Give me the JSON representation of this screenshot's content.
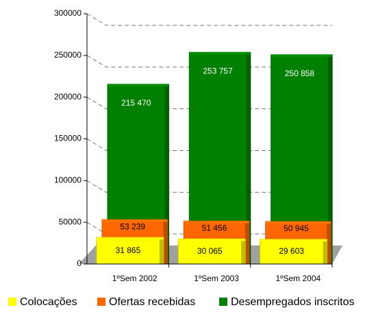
{
  "chart_data": {
    "type": "bar",
    "categories": [
      "1ºSem 2002",
      "1ºSem 2003",
      "1ºSem 2004"
    ],
    "series": [
      {
        "name": "Colocações",
        "color": "#ffff00",
        "values": [
          31865,
          30065,
          29603
        ],
        "value_labels": [
          "31 865",
          "30 065",
          "29 603"
        ]
      },
      {
        "name": "Ofertas recebidas",
        "color": "#ff6600",
        "values": [
          53239,
          51456,
          50945
        ],
        "value_labels": [
          "53 239",
          "51 456",
          "50 945"
        ]
      },
      {
        "name": "Desempregados inscritos",
        "color": "#008000",
        "values": [
          215470,
          253757,
          250858
        ],
        "value_labels": [
          "215 470",
          "253 757",
          "250 858"
        ]
      }
    ],
    "ylim": [
      0,
      300000
    ],
    "yticks": [
      0,
      50000,
      100000,
      150000,
      200000,
      250000,
      300000
    ],
    "grid": true,
    "legend": "bottom"
  }
}
